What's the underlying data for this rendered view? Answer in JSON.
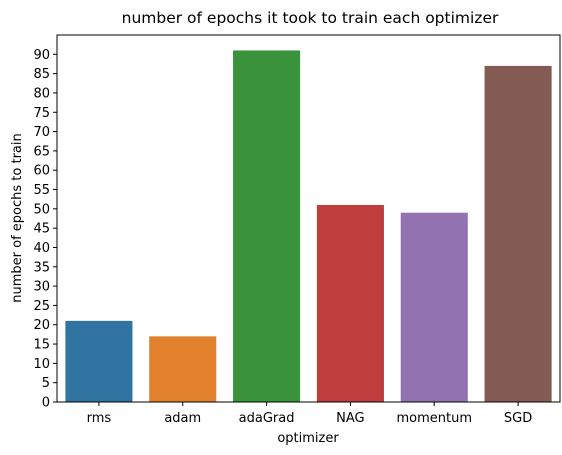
{
  "chart_data": {
    "type": "bar",
    "title": "number of epochs it took to train each optimizer",
    "xlabel": "optimizer",
    "ylabel": "number of epochs to train",
    "categories": [
      "rms",
      "adam",
      "adaGrad",
      "NAG",
      "momentum",
      "SGD"
    ],
    "values": [
      21,
      17,
      91,
      51,
      49,
      87
    ],
    "colors": [
      "#3274a1",
      "#e1812c",
      "#3a923a",
      "#c03d3e",
      "#9372b2",
      "#845b53"
    ],
    "ylim": [
      0,
      95
    ],
    "yticks": [
      0,
      5,
      10,
      15,
      20,
      25,
      30,
      35,
      40,
      45,
      50,
      55,
      60,
      65,
      70,
      75,
      80,
      85,
      90
    ],
    "grid": false,
    "legend": "none"
  }
}
